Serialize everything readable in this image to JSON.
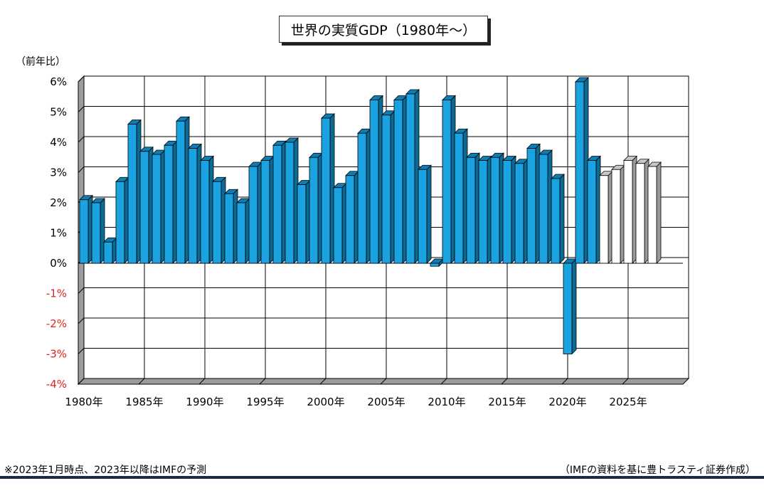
{
  "chart_data": {
    "type": "bar",
    "title": "世界の実質GDP（1980年～）",
    "ylabel": "（前年比）",
    "ylim": [
      -4,
      6
    ],
    "yticks": [
      "6%",
      "5%",
      "4%",
      "3%",
      "2%",
      "1%",
      "0%",
      "-1%",
      "-2%",
      "-3%",
      "-4%"
    ],
    "xtick_labels": [
      "1980年",
      "1985年",
      "1990年",
      "1995年",
      "2000年",
      "2005年",
      "2010年",
      "2015年",
      "2020年",
      "2025年"
    ],
    "grid": true,
    "x": [
      1980,
      1981,
      1982,
      1983,
      1984,
      1985,
      1986,
      1987,
      1988,
      1989,
      1990,
      1991,
      1992,
      1993,
      1994,
      1995,
      1996,
      1997,
      1998,
      1999,
      2000,
      2001,
      2002,
      2003,
      2004,
      2005,
      2006,
      2007,
      2008,
      2009,
      2010,
      2011,
      2012,
      2013,
      2014,
      2015,
      2016,
      2017,
      2018,
      2019,
      2020,
      2021,
      2022,
      2023,
      2024,
      2025,
      2026,
      2027
    ],
    "values": [
      2.1,
      2.0,
      0.7,
      2.7,
      4.6,
      3.7,
      3.6,
      3.9,
      4.7,
      3.8,
      3.4,
      2.7,
      2.3,
      2.0,
      3.2,
      3.4,
      3.9,
      4.0,
      2.6,
      3.5,
      4.8,
      2.5,
      2.9,
      4.3,
      5.4,
      4.9,
      5.4,
      5.6,
      3.1,
      -0.1,
      5.4,
      4.3,
      3.5,
      3.4,
      3.5,
      3.4,
      3.3,
      3.8,
      3.6,
      2.8,
      -3.0,
      6.0,
      3.4,
      2.9,
      3.1,
      3.4,
      3.3,
      3.2
    ],
    "forecast_from": 2023,
    "colors": {
      "actual": "#1aa3e0",
      "actual_side": "#0d6a96",
      "actual_top": "#0f7db3",
      "forecast": "#ffffff",
      "forecast_side": "#9a9a9a",
      "forecast_top": "#c8c8c8",
      "negative_tick": "#e02020",
      "grid": "#000000"
    }
  },
  "footnote": "※2023年1月時点、2023年以降はIMFの予測",
  "source": "（IMFの資料を基に豊トラスティ証券作成）"
}
